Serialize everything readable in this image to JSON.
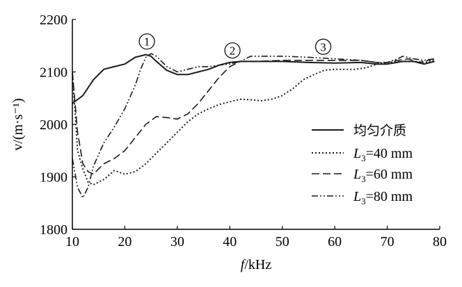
{
  "chart_data": {
    "type": "line",
    "xlabel": "f/kHz",
    "ylabel": "v/(m·s⁻¹)",
    "xlim": [
      10,
      80
    ],
    "ylim": [
      1800,
      2200
    ],
    "xticks": [
      10,
      20,
      30,
      40,
      50,
      60,
      70,
      80
    ],
    "yticks": [
      1800,
      1900,
      2000,
      2100,
      2200
    ],
    "grid": false,
    "legend_position": "center-right",
    "series": [
      {
        "name": "均匀介质",
        "style": "solid",
        "points": [
          [
            10,
            2040
          ],
          [
            12,
            2055
          ],
          [
            14,
            2085
          ],
          [
            16,
            2105
          ],
          [
            18,
            2110
          ],
          [
            20,
            2115
          ],
          [
            22,
            2128
          ],
          [
            24,
            2133
          ],
          [
            25,
            2130
          ],
          [
            26,
            2120
          ],
          [
            28,
            2103
          ],
          [
            30,
            2095
          ],
          [
            32,
            2095
          ],
          [
            34,
            2100
          ],
          [
            36,
            2105
          ],
          [
            38,
            2113
          ],
          [
            40,
            2118
          ],
          [
            42,
            2120
          ],
          [
            45,
            2120
          ],
          [
            50,
            2120
          ],
          [
            55,
            2118
          ],
          [
            60,
            2117
          ],
          [
            65,
            2118
          ],
          [
            68,
            2115
          ],
          [
            70,
            2115
          ],
          [
            73,
            2120
          ],
          [
            75,
            2120
          ],
          [
            77,
            2115
          ],
          [
            79,
            2120
          ]
        ]
      },
      {
        "name": "L3=40 mm",
        "label_main": "L",
        "label_sub": "3",
        "label_rest": "=40 mm",
        "style": "dotted",
        "points": [
          [
            10,
            2100
          ],
          [
            11,
            1950
          ],
          [
            12,
            1915
          ],
          [
            13,
            1890
          ],
          [
            14,
            1885
          ],
          [
            16,
            1895
          ],
          [
            18,
            1912
          ],
          [
            20,
            1905
          ],
          [
            22,
            1910
          ],
          [
            24,
            1925
          ],
          [
            26,
            1945
          ],
          [
            28,
            1965
          ],
          [
            30,
            1985
          ],
          [
            32,
            2005
          ],
          [
            34,
            2020
          ],
          [
            36,
            2030
          ],
          [
            38,
            2038
          ],
          [
            40,
            2043
          ],
          [
            42,
            2048
          ],
          [
            44,
            2047
          ],
          [
            46,
            2045
          ],
          [
            48,
            2048
          ],
          [
            50,
            2055
          ],
          [
            52,
            2068
          ],
          [
            54,
            2085
          ],
          [
            56,
            2095
          ],
          [
            58,
            2103
          ],
          [
            60,
            2105
          ],
          [
            62,
            2105
          ],
          [
            64,
            2105
          ],
          [
            66,
            2108
          ],
          [
            68,
            2115
          ],
          [
            70,
            2118
          ],
          [
            73,
            2120
          ],
          [
            75,
            2120
          ],
          [
            77,
            2118
          ],
          [
            79,
            2122
          ]
        ]
      },
      {
        "name": "L3=60 mm",
        "label_main": "L",
        "label_sub": "3",
        "label_rest": "=60 mm",
        "style": "dash",
        "points": [
          [
            10,
            2100
          ],
          [
            11,
            1985
          ],
          [
            12,
            1925
          ],
          [
            13,
            1910
          ],
          [
            14,
            1905
          ],
          [
            16,
            1925
          ],
          [
            18,
            1935
          ],
          [
            20,
            1950
          ],
          [
            22,
            1975
          ],
          [
            24,
            2000
          ],
          [
            26,
            2015
          ],
          [
            28,
            2013
          ],
          [
            30,
            2010
          ],
          [
            32,
            2020
          ],
          [
            34,
            2040
          ],
          [
            36,
            2065
          ],
          [
            38,
            2090
          ],
          [
            40,
            2110
          ],
          [
            42,
            2120
          ],
          [
            45,
            2120
          ],
          [
            50,
            2122
          ],
          [
            55,
            2122
          ],
          [
            60,
            2122
          ],
          [
            65,
            2122
          ],
          [
            68,
            2118
          ],
          [
            70,
            2118
          ],
          [
            72,
            2122
          ],
          [
            74,
            2125
          ],
          [
            76,
            2118
          ],
          [
            79,
            2125
          ]
        ]
      },
      {
        "name": "L3=80 mm",
        "label_main": "L",
        "label_sub": "3",
        "label_rest": "=80 mm",
        "style": "dash-dot-dot",
        "points": [
          [
            10,
            1935
          ],
          [
            11,
            1880
          ],
          [
            12,
            1860
          ],
          [
            13,
            1880
          ],
          [
            14,
            1920
          ],
          [
            16,
            1965
          ],
          [
            18,
            1995
          ],
          [
            20,
            2030
          ],
          [
            22,
            2075
          ],
          [
            23,
            2105
          ],
          [
            24,
            2128
          ],
          [
            25,
            2135
          ],
          [
            26,
            2130
          ],
          [
            28,
            2110
          ],
          [
            30,
            2100
          ],
          [
            32,
            2105
          ],
          [
            34,
            2110
          ],
          [
            36,
            2110
          ],
          [
            38,
            2113
          ],
          [
            40,
            2115
          ],
          [
            42,
            2120
          ],
          [
            44,
            2130
          ],
          [
            46,
            2130
          ],
          [
            50,
            2130
          ],
          [
            55,
            2128
          ],
          [
            60,
            2125
          ],
          [
            65,
            2122
          ],
          [
            68,
            2118
          ],
          [
            70,
            2118
          ],
          [
            72,
            2125
          ],
          [
            73,
            2130
          ],
          [
            75,
            2125
          ],
          [
            77,
            2122
          ],
          [
            79,
            2125
          ]
        ]
      }
    ],
    "annotations": [
      {
        "text": "①",
        "x": 24.2,
        "y": 2158
      },
      {
        "text": "②",
        "x": 40.5,
        "y": 2141
      },
      {
        "text": "③",
        "x": 57.8,
        "y": 2148
      }
    ]
  }
}
